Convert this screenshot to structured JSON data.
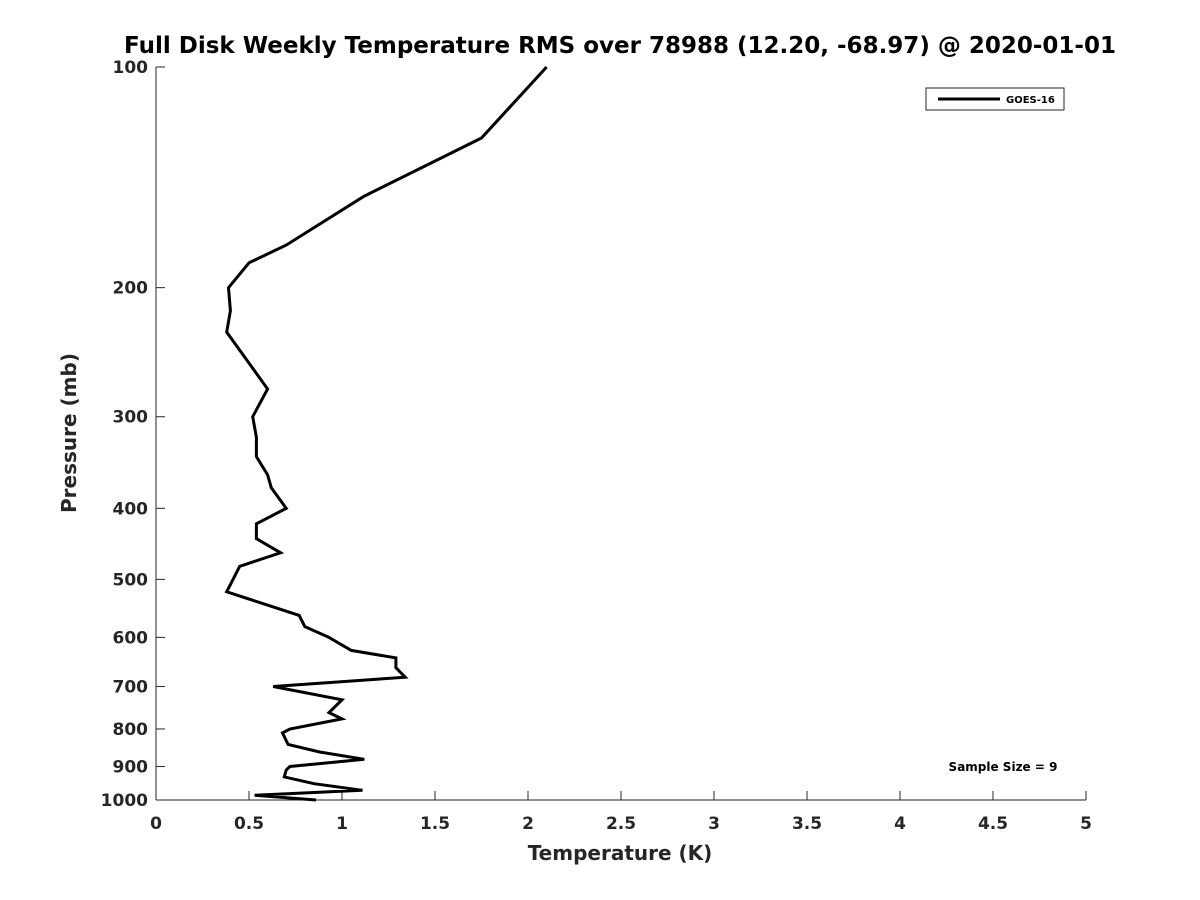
{
  "chart_data": {
    "type": "line",
    "title": "Full Disk Weekly Temperature RMS over 78988 (12.20, -68.97) @ 2020-01-01",
    "xlabel": "Temperature (K)",
    "ylabel": "Pressure (mb)",
    "xlim": [
      0,
      5
    ],
    "ylim": [
      100,
      1000
    ],
    "y_scale": "log",
    "y_reversed": true,
    "xticks": [
      "0",
      "0.5",
      "1",
      "1.5",
      "2",
      "2.5",
      "3",
      "3.5",
      "4",
      "4.5",
      "5"
    ],
    "yticks": [
      "100",
      "200",
      "300",
      "400",
      "500",
      "600",
      "700",
      "800",
      "900",
      "1000"
    ],
    "grid": false,
    "legend_position": "top-right",
    "series": [
      {
        "name": "GOES-16",
        "color": "#000000",
        "points": [
          [
            2.1,
            100
          ],
          [
            1.75,
            125
          ],
          [
            1.12,
            150
          ],
          [
            0.7,
            175
          ],
          [
            0.5,
            185
          ],
          [
            0.39,
            200
          ],
          [
            0.4,
            215
          ],
          [
            0.38,
            230
          ],
          [
            0.6,
            275
          ],
          [
            0.52,
            300
          ],
          [
            0.54,
            320
          ],
          [
            0.54,
            340
          ],
          [
            0.6,
            360
          ],
          [
            0.62,
            375
          ],
          [
            0.7,
            400
          ],
          [
            0.54,
            420
          ],
          [
            0.54,
            440
          ],
          [
            0.67,
            460
          ],
          [
            0.45,
            480
          ],
          [
            0.38,
            520
          ],
          [
            0.77,
            560
          ],
          [
            0.8,
            580
          ],
          [
            0.93,
            600
          ],
          [
            1.05,
            625
          ],
          [
            1.29,
            640
          ],
          [
            1.29,
            660
          ],
          [
            1.34,
            680
          ],
          [
            0.63,
            700
          ],
          [
            1.0,
            730
          ],
          [
            0.93,
            760
          ],
          [
            1.0,
            775
          ],
          [
            0.72,
            800
          ],
          [
            0.68,
            810
          ],
          [
            0.71,
            840
          ],
          [
            0.88,
            860
          ],
          [
            1.12,
            880
          ],
          [
            0.72,
            900
          ],
          [
            0.7,
            910
          ],
          [
            0.69,
            930
          ],
          [
            0.85,
            950
          ],
          [
            1.11,
            970
          ],
          [
            0.53,
            985
          ],
          [
            0.86,
            1000
          ]
        ]
      }
    ],
    "annotations": [
      "Sample Size = 9"
    ]
  }
}
